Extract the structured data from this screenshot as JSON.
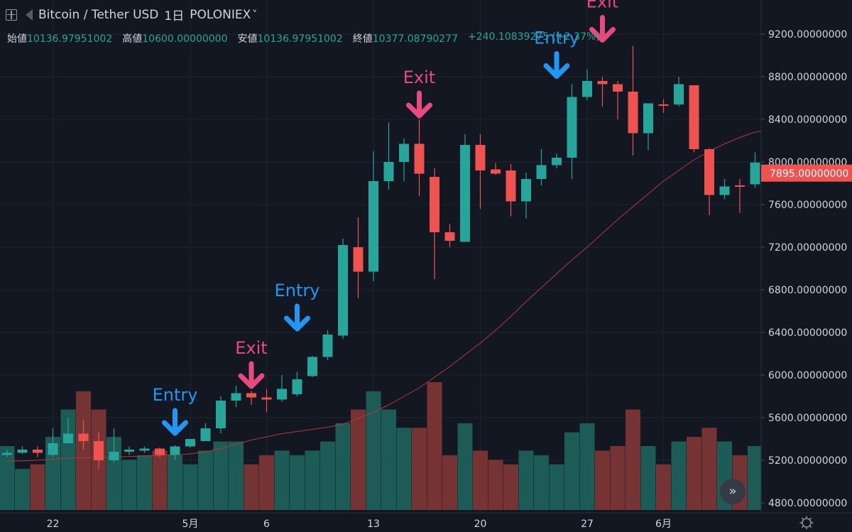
{
  "header": {
    "symbol": "Bitcoin / Tether USD",
    "interval": "1日",
    "exchange": "POLONIEX",
    "dropdown_glyph": "˅"
  },
  "ohlc": {
    "open_label": "始値",
    "open": "10136.97951002",
    "high_label": "高値",
    "high": "10600.00000000",
    "low_label": "安値",
    "low": "10136.97951002",
    "close_label": "終値",
    "close": "10377.08790277",
    "change": "+240.10839275 (+2.37%)"
  },
  "colors": {
    "up": "#26a69a",
    "down": "#ef5350",
    "entry": "#2196f3",
    "exit": "#e84a7f",
    "ma": "#b23a3a",
    "bg": "#131722"
  },
  "nav_button_glyph": "»",
  "chart_data": {
    "type": "candlestick",
    "title": "",
    "ylim": [
      4780,
      9450
    ],
    "y_ticks": [
      4800,
      5200,
      5600,
      6000,
      6400,
      6800,
      7200,
      7600,
      8000,
      8400,
      8800,
      9200
    ],
    "y_tick_labels": [
      "4800.00000000",
      "5200.00000000",
      "5600.00000000",
      "6000.00000000",
      "6400.00000000",
      "6800.00000000",
      "7200.00000000",
      "7600.00000000",
      "8000.00000000",
      "8400.00000000",
      "8800.00000000",
      "9200.00000000"
    ],
    "current_price_label": "7895.00000000",
    "current_price": 7895,
    "x_labels": [
      {
        "index": 3,
        "label": "22"
      },
      {
        "index": 12,
        "label": "5月"
      },
      {
        "index": 17,
        "label": "6"
      },
      {
        "index": 24,
        "label": "13"
      },
      {
        "index": 31,
        "label": "20"
      },
      {
        "index": 38,
        "label": "27"
      },
      {
        "index": 43,
        "label": "6月"
      }
    ],
    "candles": [
      {
        "o": 5250,
        "h": 5300,
        "l": 5230,
        "c": 5270
      },
      {
        "o": 5270,
        "h": 5330,
        "l": 5260,
        "c": 5300
      },
      {
        "o": 5300,
        "h": 5330,
        "l": 5230,
        "c": 5270
      },
      {
        "o": 5250,
        "h": 5500,
        "l": 5230,
        "c": 5360
      },
      {
        "o": 5360,
        "h": 5600,
        "l": 5360,
        "c": 5450
      },
      {
        "o": 5450,
        "h": 5580,
        "l": 5300,
        "c": 5380
      },
      {
        "o": 5380,
        "h": 5460,
        "l": 5120,
        "c": 5200
      },
      {
        "o": 5200,
        "h": 5500,
        "l": 5180,
        "c": 5280
      },
      {
        "o": 5280,
        "h": 5330,
        "l": 5250,
        "c": 5300
      },
      {
        "o": 5290,
        "h": 5330,
        "l": 5270,
        "c": 5310
      },
      {
        "o": 5310,
        "h": 5320,
        "l": 5230,
        "c": 5250
      },
      {
        "o": 5250,
        "h": 5340,
        "l": 5200,
        "c": 5330
      },
      {
        "o": 5330,
        "h": 5400,
        "l": 5320,
        "c": 5400
      },
      {
        "o": 5380,
        "h": 5550,
        "l": 5380,
        "c": 5500
      },
      {
        "o": 5500,
        "h": 5800,
        "l": 5450,
        "c": 5760
      },
      {
        "o": 5760,
        "h": 5900,
        "l": 5700,
        "c": 5830
      },
      {
        "o": 5830,
        "h": 5850,
        "l": 5720,
        "c": 5790
      },
      {
        "o": 5790,
        "h": 5870,
        "l": 5650,
        "c": 5770
      },
      {
        "o": 5770,
        "h": 6000,
        "l": 5750,
        "c": 5870
      },
      {
        "o": 5820,
        "h": 6030,
        "l": 5800,
        "c": 5960
      },
      {
        "o": 5990,
        "h": 6180,
        "l": 5980,
        "c": 6170
      },
      {
        "o": 6170,
        "h": 6420,
        "l": 6140,
        "c": 6380
      },
      {
        "o": 6370,
        "h": 7280,
        "l": 6340,
        "c": 7220
      },
      {
        "o": 7200,
        "h": 7480,
        "l": 6720,
        "c": 6970
      },
      {
        "o": 6970,
        "h": 8100,
        "l": 6880,
        "c": 7820
      },
      {
        "o": 7820,
        "h": 8370,
        "l": 7740,
        "c": 8000
      },
      {
        "o": 8000,
        "h": 8220,
        "l": 7820,
        "c": 8170
      },
      {
        "o": 8170,
        "h": 8400,
        "l": 7680,
        "c": 7890
      },
      {
        "o": 7860,
        "h": 7940,
        "l": 6900,
        "c": 7340
      },
      {
        "o": 7340,
        "h": 7420,
        "l": 7200,
        "c": 7260
      },
      {
        "o": 7250,
        "h": 8260,
        "l": 7250,
        "c": 8160
      },
      {
        "o": 8160,
        "h": 8260,
        "l": 7560,
        "c": 7920
      },
      {
        "o": 7930,
        "h": 7990,
        "l": 7880,
        "c": 7890
      },
      {
        "o": 7920,
        "h": 7980,
        "l": 7490,
        "c": 7630
      },
      {
        "o": 7630,
        "h": 7900,
        "l": 7470,
        "c": 7840
      },
      {
        "o": 7840,
        "h": 8120,
        "l": 7780,
        "c": 7970
      },
      {
        "o": 7970,
        "h": 8080,
        "l": 7940,
        "c": 8040
      },
      {
        "o": 8040,
        "h": 8730,
        "l": 7840,
        "c": 8610
      },
      {
        "o": 8610,
        "h": 8870,
        "l": 8580,
        "c": 8760
      },
      {
        "o": 8760,
        "h": 8800,
        "l": 8520,
        "c": 8730
      },
      {
        "o": 8730,
        "h": 8760,
        "l": 8400,
        "c": 8660
      },
      {
        "o": 8660,
        "h": 9090,
        "l": 8060,
        "c": 8270
      },
      {
        "o": 8270,
        "h": 8550,
        "l": 8110,
        "c": 8550
      },
      {
        "o": 8540,
        "h": 8590,
        "l": 8460,
        "c": 8530
      },
      {
        "o": 8540,
        "h": 8800,
        "l": 8520,
        "c": 8730
      },
      {
        "o": 8720,
        "h": 8720,
        "l": 8090,
        "c": 8120
      },
      {
        "o": 8120,
        "h": 8130,
        "l": 7500,
        "c": 7690
      },
      {
        "o": 7690,
        "h": 7840,
        "l": 7650,
        "c": 7770
      },
      {
        "o": 7780,
        "h": 7840,
        "l": 7520,
        "c": 7770
      },
      {
        "o": 7790,
        "h": 8090,
        "l": 7760,
        "c": 7995
      },
      {
        "o": 7990,
        "h": 8000,
        "l": 7895,
        "c": 7895
      }
    ],
    "ma": [
      5190,
      5195,
      5200,
      5210,
      5220,
      5225,
      5225,
      5230,
      5235,
      5240,
      5245,
      5250,
      5260,
      5280,
      5310,
      5350,
      5390,
      5420,
      5450,
      5470,
      5490,
      5510,
      5540,
      5590,
      5650,
      5720,
      5800,
      5880,
      5980,
      6080,
      6190,
      6300,
      6420,
      6550,
      6690,
      6820,
      6950,
      7080,
      7200,
      7330,
      7460,
      7580,
      7700,
      7820,
      7920,
      8020,
      8100,
      8170,
      8230,
      8280,
      8300
    ],
    "volume": [
      1400,
      900,
      1000,
      1600,
      2200,
      2600,
      2200,
      1600,
      1100,
      1200,
      1300,
      1200,
      1000,
      1300,
      1500,
      1500,
      1000,
      1200,
      1300,
      1200,
      1300,
      1500,
      1900,
      2200,
      2600,
      2200,
      1800,
      1800,
      2800,
      1200,
      1900,
      1300,
      1100,
      1000,
      1300,
      1200,
      1000,
      1700,
      1900,
      1300,
      1400,
      2200,
      1400,
      1000,
      1500,
      1600,
      1800,
      1500,
      1200,
      1400,
      1300
    ],
    "volume_ma_label": "",
    "annotations": [
      {
        "type": "Entry",
        "index": 11,
        "price": 5400
      },
      {
        "type": "Exit",
        "index": 16,
        "price": 5840
      },
      {
        "type": "Entry",
        "index": 19,
        "price": 6380
      },
      {
        "type": "Exit",
        "index": 27,
        "price": 8380
      },
      {
        "type": "Entry",
        "index": 36,
        "price": 8750
      },
      {
        "type": "Exit",
        "index": 39,
        "price": 9090
      }
    ]
  }
}
